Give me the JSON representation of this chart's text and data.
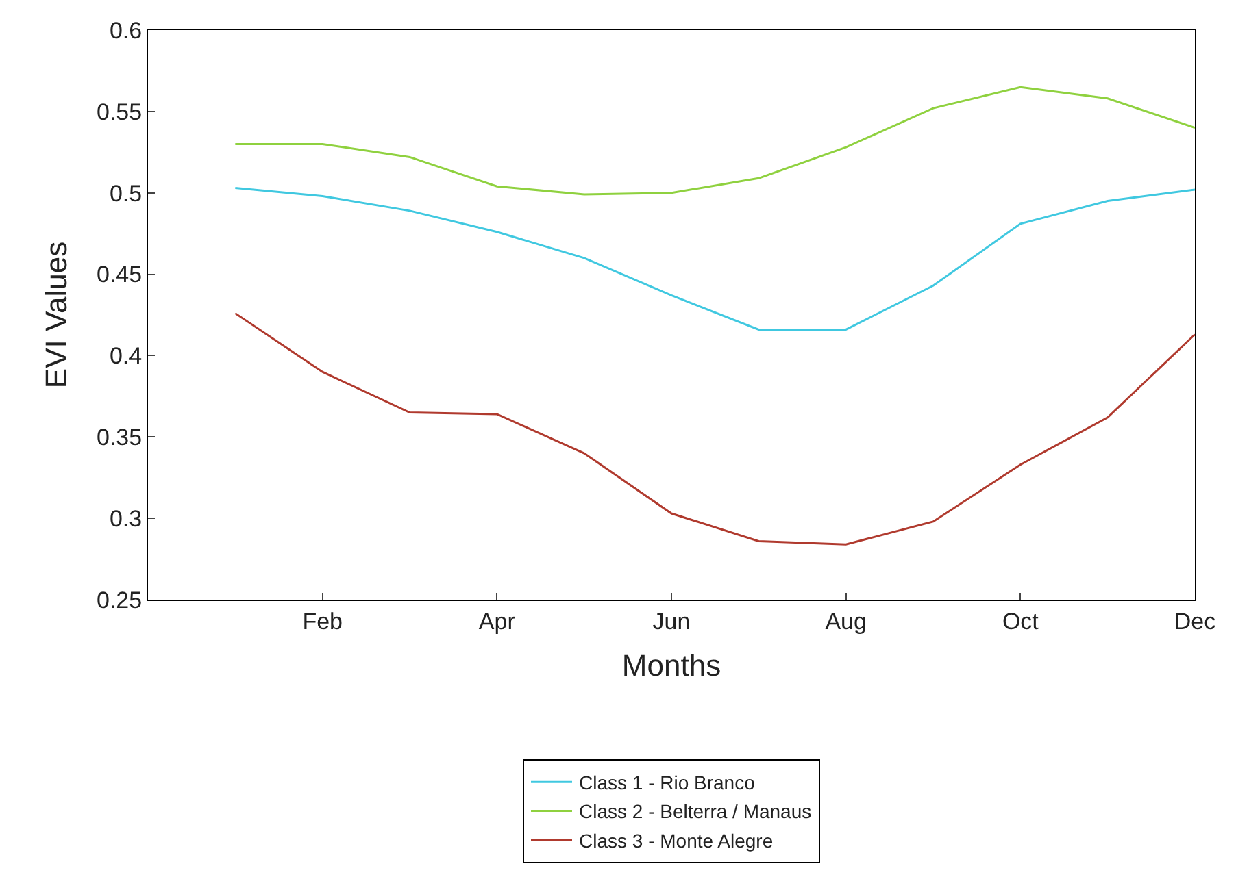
{
  "chart_data": {
    "type": "line",
    "xlabel": "Months",
    "ylabel": "EVI Values",
    "categories": [
      null,
      "Feb",
      null,
      "Apr",
      null,
      "Jun",
      null,
      "Aug",
      null,
      "Oct",
      null,
      "Dec"
    ],
    "ylim": [
      0.25,
      0.6
    ],
    "yticks": [
      0.25,
      0.3,
      0.35,
      0.4,
      0.45,
      0.5,
      0.55,
      0.6
    ],
    "legend": "bottom",
    "marker": "none",
    "line_style": "solid",
    "series": [
      {
        "name": "Class 1 - Rio Branco",
        "color": "#40c8e0",
        "values": [
          0.503,
          0.498,
          0.489,
          0.476,
          0.46,
          0.437,
          0.416,
          0.416,
          0.443,
          0.481,
          0.495,
          0.502
        ]
      },
      {
        "name": "Class 2 - Belterra / Manaus",
        "color": "#8fd13f",
        "values": [
          0.53,
          0.53,
          0.522,
          0.504,
          0.499,
          0.5,
          0.509,
          0.528,
          0.552,
          0.565,
          0.558,
          0.54
        ]
      },
      {
        "name": "Class 3 - Monte Alegre",
        "color": "#b03a2e",
        "values": [
          0.426,
          0.39,
          0.365,
          0.364,
          0.34,
          0.303,
          0.286,
          0.284,
          0.298,
          0.333,
          0.362,
          0.413
        ]
      }
    ]
  }
}
